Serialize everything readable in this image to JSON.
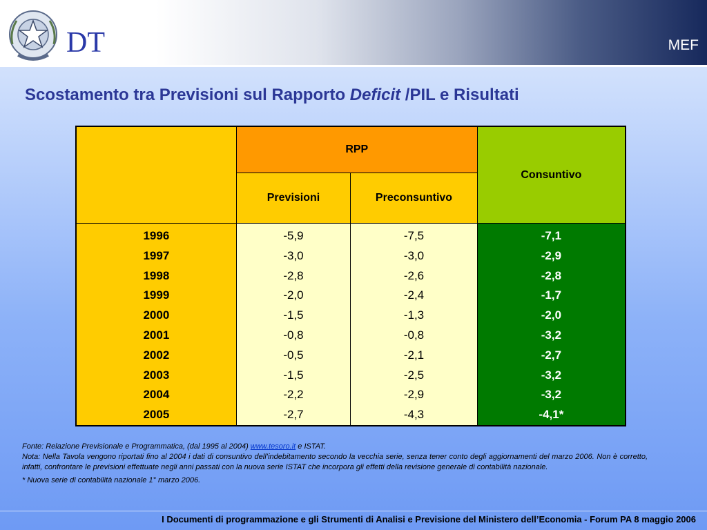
{
  "header": {
    "logo_text": "DT",
    "org": "MEF"
  },
  "title": {
    "part1": "Scostamento tra Previsioni sul Rapporto ",
    "italic": "Deficit",
    "part2": " /PIL e Risultati"
  },
  "table": {
    "group_header": "RPP",
    "col_previsioni": "Previsioni",
    "col_preconsuntivo": "Preconsuntivo",
    "col_consuntivo": "Consuntivo",
    "years": [
      "1996",
      "1997",
      "1998",
      "1999",
      "2000",
      "2001",
      "2002",
      "2003",
      "2004",
      "2005"
    ],
    "previsioni": [
      "-5,9",
      "-3,0",
      "-2,8",
      "-2,0",
      "-1,5",
      "-0,8",
      "-0,5",
      "-1,5",
      "-2,2",
      "-2,7"
    ],
    "preconsuntivo": [
      "-7,5",
      "-3,0",
      "-2,6",
      "-2,4",
      "-1,3",
      "-0,8",
      "-2,1",
      "-2,5",
      "-2,9",
      "-4,3"
    ],
    "consuntivo": [
      "-7,1",
      "-2,9",
      "-2,8",
      "-1,7",
      "-2,0",
      "-3,2",
      "-2,7",
      "-3,2",
      "-3,2",
      "-4,1*"
    ]
  },
  "notes": {
    "source_prefix": "Fonte: Relazione Previsionale e Programmatica, (dal 1995 al 2004) ",
    "source_link": "www.tesoro.it",
    "source_suffix": " e ISTAT.",
    "nota": "Nota: Nella Tavola vengono riportati fino al 2004 i dati di consuntivo dell’indebitamento secondo la vecchia serie, senza tener conto degli aggiornamenti del marzo 2006. Non è corretto, infatti, confrontare le previsioni effettuate negli anni passati con la nuova serie ISTAT che incorpora gli effetti della revisione generale di contabilità nazionale.",
    "asterisk": "* Nuova serie di contabilità nazionale 1° marzo 2006."
  },
  "footer": "I Documenti di programmazione e gli Strumenti di Analisi e Previsione del  Ministero dell’Economia - Forum PA  8 maggio 2006"
}
